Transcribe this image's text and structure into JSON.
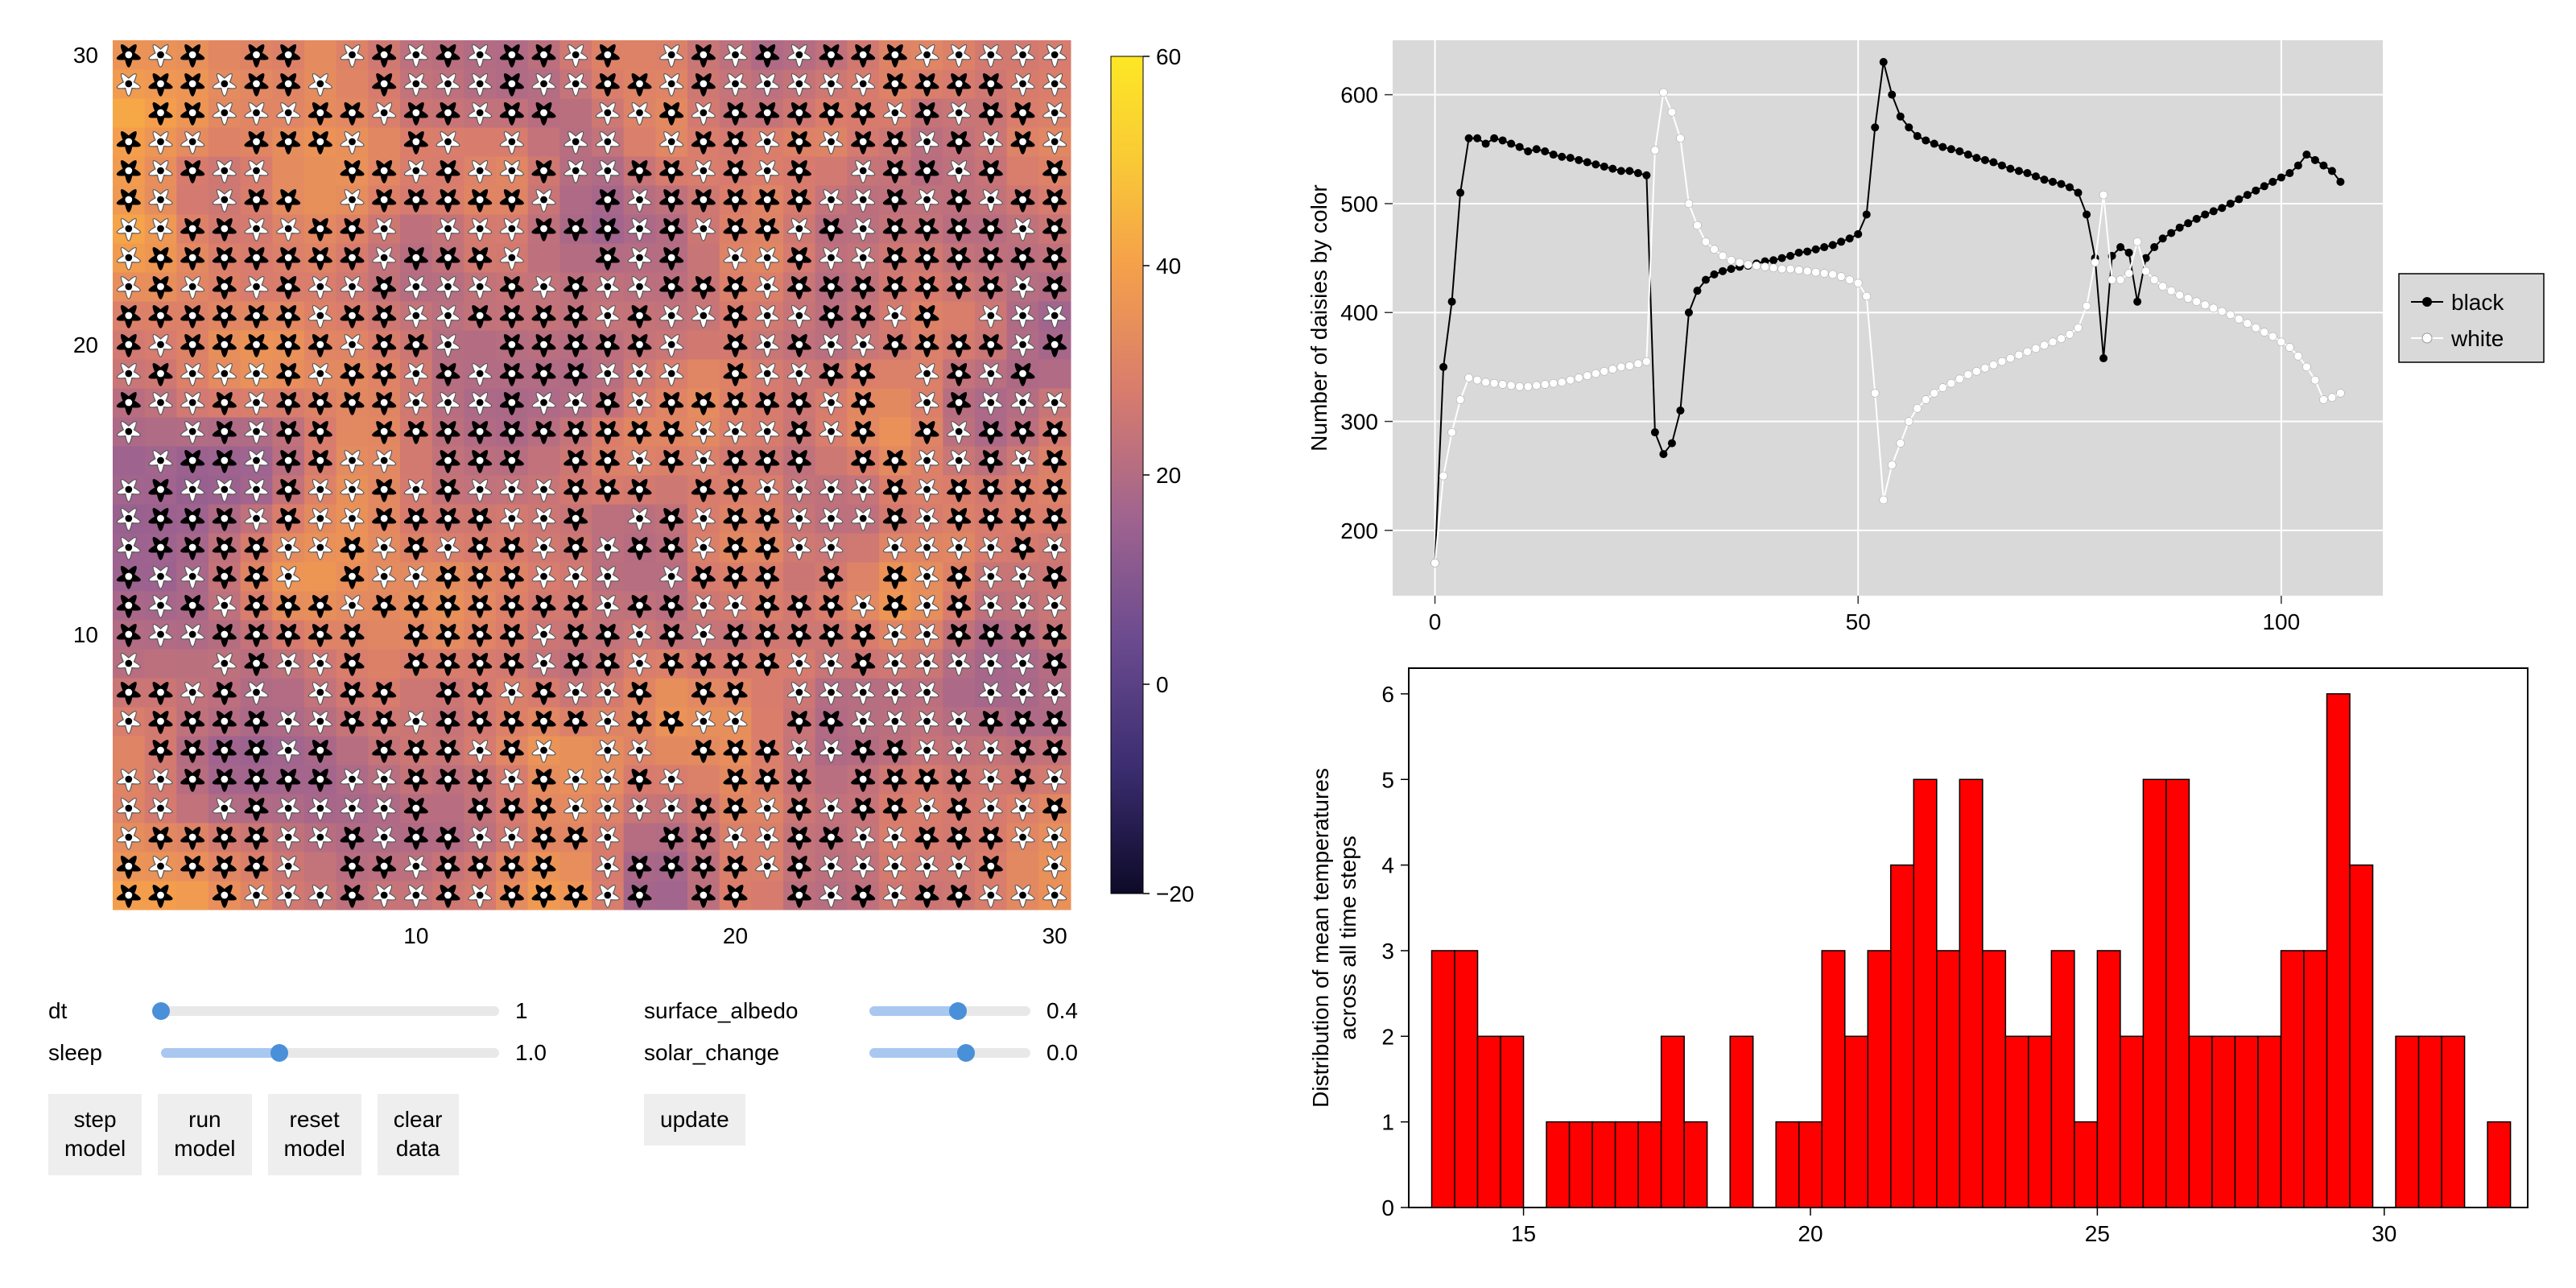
{
  "heatmap": {
    "type": "heatmap",
    "grid_size": 30,
    "x_ticks": [
      10,
      20,
      30
    ],
    "y_ticks": [
      10,
      20,
      30
    ],
    "tick_fontsize": 28,
    "colorbar": {
      "min": -20,
      "max": 60,
      "ticks": [
        -20,
        0,
        20,
        40,
        60
      ],
      "colors": [
        {
          "t": 0.0,
          "c": "#0d0a28"
        },
        {
          "t": 0.15,
          "c": "#3b2d70"
        },
        {
          "t": 0.3,
          "c": "#6a4a8f"
        },
        {
          "t": 0.45,
          "c": "#a0648f"
        },
        {
          "t": 0.6,
          "c": "#d87c6d"
        },
        {
          "t": 0.75,
          "c": "#f5a04b"
        },
        {
          "t": 0.88,
          "c": "#f9cb35"
        },
        {
          "t": 1.0,
          "c": "#fde725"
        }
      ]
    },
    "daisy_colors": {
      "black": "#000000",
      "white": "#ffffff"
    },
    "seed": 42
  },
  "controls": {
    "left": [
      {
        "name": "dt",
        "label": "dt",
        "value_text": "1",
        "fill_pct": 0,
        "thumb_pct": 0,
        "width": "wide"
      },
      {
        "name": "sleep",
        "label": "sleep",
        "value_text": "1.0",
        "fill_pct": 35,
        "thumb_pct": 35,
        "width": "wide"
      }
    ],
    "right": [
      {
        "name": "surface_albedo",
        "label": "surface_albedo",
        "value_text": "0.4",
        "fill_pct": 55,
        "thumb_pct": 55,
        "width": "narrow"
      },
      {
        "name": "solar_change",
        "label": "solar_change",
        "value_text": "0.0",
        "fill_pct": 60,
        "thumb_pct": 60,
        "width": "narrow"
      }
    ],
    "buttons_left": [
      {
        "name": "step-model",
        "label": "step\nmodel"
      },
      {
        "name": "run-model",
        "label": "run\nmodel"
      },
      {
        "name": "reset-model",
        "label": "reset\nmodel"
      },
      {
        "name": "clear-data",
        "label": "clear\ndata"
      }
    ],
    "buttons_right": [
      {
        "name": "update",
        "label": "update"
      }
    ]
  },
  "line_chart": {
    "type": "line",
    "background_color": "#d9d9d9",
    "grid_color": "#ffffff",
    "ylabel": "Number of daisies by color",
    "label_fontsize": 28,
    "xlim": [
      -5,
      112
    ],
    "ylim": [
      140,
      650
    ],
    "x_ticks": [
      0,
      50,
      100
    ],
    "y_ticks": [
      200,
      300,
      400,
      500,
      600
    ],
    "series": [
      {
        "name": "black",
        "color": "#000000",
        "marker": "circle",
        "marker_size": 5,
        "line_width": 2,
        "data": [
          [
            0,
            170
          ],
          [
            1,
            350
          ],
          [
            2,
            410
          ],
          [
            3,
            510
          ],
          [
            4,
            560
          ],
          [
            5,
            560
          ],
          [
            6,
            555
          ],
          [
            7,
            560
          ],
          [
            8,
            558
          ],
          [
            9,
            555
          ],
          [
            10,
            552
          ],
          [
            11,
            548
          ],
          [
            12,
            550
          ],
          [
            13,
            548
          ],
          [
            14,
            545
          ],
          [
            15,
            543
          ],
          [
            16,
            542
          ],
          [
            17,
            540
          ],
          [
            18,
            538
          ],
          [
            19,
            536
          ],
          [
            20,
            534
          ],
          [
            21,
            532
          ],
          [
            22,
            530
          ],
          [
            23,
            530
          ],
          [
            24,
            528
          ],
          [
            25,
            526
          ],
          [
            26,
            290
          ],
          [
            27,
            270
          ],
          [
            28,
            280
          ],
          [
            29,
            310
          ],
          [
            30,
            400
          ],
          [
            31,
            420
          ],
          [
            32,
            430
          ],
          [
            33,
            435
          ],
          [
            34,
            438
          ],
          [
            35,
            440
          ],
          [
            36,
            442
          ],
          [
            37,
            443
          ],
          [
            38,
            445
          ],
          [
            39,
            447
          ],
          [
            40,
            448
          ],
          [
            41,
            450
          ],
          [
            42,
            452
          ],
          [
            43,
            455
          ],
          [
            44,
            456
          ],
          [
            45,
            458
          ],
          [
            46,
            460
          ],
          [
            47,
            462
          ],
          [
            48,
            465
          ],
          [
            49,
            468
          ],
          [
            50,
            472
          ],
          [
            51,
            490
          ],
          [
            52,
            570
          ],
          [
            53,
            630
          ],
          [
            54,
            600
          ],
          [
            55,
            580
          ],
          [
            56,
            570
          ],
          [
            57,
            562
          ],
          [
            58,
            558
          ],
          [
            59,
            555
          ],
          [
            60,
            552
          ],
          [
            61,
            550
          ],
          [
            62,
            548
          ],
          [
            63,
            545
          ],
          [
            64,
            542
          ],
          [
            65,
            540
          ],
          [
            66,
            538
          ],
          [
            67,
            535
          ],
          [
            68,
            532
          ],
          [
            69,
            530
          ],
          [
            70,
            528
          ],
          [
            71,
            525
          ],
          [
            72,
            522
          ],
          [
            73,
            520
          ],
          [
            74,
            518
          ],
          [
            75,
            515
          ],
          [
            76,
            510
          ],
          [
            77,
            490
          ],
          [
            78,
            450
          ],
          [
            79,
            358
          ],
          [
            80,
            452
          ],
          [
            81,
            460
          ],
          [
            82,
            455
          ],
          [
            83,
            410
          ],
          [
            84,
            450
          ],
          [
            85,
            460
          ],
          [
            86,
            468
          ],
          [
            87,
            473
          ],
          [
            88,
            478
          ],
          [
            89,
            482
          ],
          [
            90,
            486
          ],
          [
            91,
            490
          ],
          [
            92,
            493
          ],
          [
            93,
            496
          ],
          [
            94,
            500
          ],
          [
            95,
            504
          ],
          [
            96,
            508
          ],
          [
            97,
            512
          ],
          [
            98,
            516
          ],
          [
            99,
            520
          ],
          [
            100,
            524
          ],
          [
            101,
            528
          ],
          [
            102,
            535
          ],
          [
            103,
            545
          ],
          [
            104,
            540
          ],
          [
            105,
            535
          ],
          [
            106,
            530
          ],
          [
            107,
            520
          ]
        ]
      },
      {
        "name": "white",
        "color": "#ffffff",
        "marker": "circle",
        "marker_size": 5,
        "line_width": 2,
        "data": [
          [
            0,
            170
          ],
          [
            1,
            250
          ],
          [
            2,
            290
          ],
          [
            3,
            320
          ],
          [
            4,
            340
          ],
          [
            5,
            338
          ],
          [
            6,
            336
          ],
          [
            7,
            335
          ],
          [
            8,
            334
          ],
          [
            9,
            333
          ],
          [
            10,
            332
          ],
          [
            11,
            332
          ],
          [
            12,
            333
          ],
          [
            13,
            334
          ],
          [
            14,
            335
          ],
          [
            15,
            336
          ],
          [
            16,
            338
          ],
          [
            17,
            340
          ],
          [
            18,
            342
          ],
          [
            19,
            344
          ],
          [
            20,
            346
          ],
          [
            21,
            348
          ],
          [
            22,
            350
          ],
          [
            23,
            351
          ],
          [
            24,
            353
          ],
          [
            25,
            355
          ],
          [
            26,
            549
          ],
          [
            27,
            602
          ],
          [
            28,
            584
          ],
          [
            29,
            560
          ],
          [
            30,
            500
          ],
          [
            31,
            480
          ],
          [
            32,
            465
          ],
          [
            33,
            458
          ],
          [
            34,
            452
          ],
          [
            35,
            448
          ],
          [
            36,
            446
          ],
          [
            37,
            444
          ],
          [
            38,
            443
          ],
          [
            39,
            442
          ],
          [
            40,
            441
          ],
          [
            41,
            440
          ],
          [
            42,
            440
          ],
          [
            43,
            439
          ],
          [
            44,
            438
          ],
          [
            45,
            437
          ],
          [
            46,
            436
          ],
          [
            47,
            435
          ],
          [
            48,
            433
          ],
          [
            49,
            430
          ],
          [
            50,
            427
          ],
          [
            51,
            415
          ],
          [
            52,
            326
          ],
          [
            53,
            228
          ],
          [
            54,
            260
          ],
          [
            55,
            280
          ],
          [
            56,
            300
          ],
          [
            57,
            312
          ],
          [
            58,
            320
          ],
          [
            59,
            326
          ],
          [
            60,
            331
          ],
          [
            61,
            335
          ],
          [
            62,
            339
          ],
          [
            63,
            343
          ],
          [
            64,
            346
          ],
          [
            65,
            349
          ],
          [
            66,
            352
          ],
          [
            67,
            355
          ],
          [
            68,
            358
          ],
          [
            69,
            361
          ],
          [
            70,
            364
          ],
          [
            71,
            367
          ],
          [
            72,
            370
          ],
          [
            73,
            373
          ],
          [
            74,
            376
          ],
          [
            75,
            380
          ],
          [
            76,
            386
          ],
          [
            77,
            406
          ],
          [
            78,
            446
          ],
          [
            79,
            508
          ],
          [
            80,
            430
          ],
          [
            81,
            430
          ],
          [
            82,
            436
          ],
          [
            83,
            465
          ],
          [
            84,
            438
          ],
          [
            85,
            430
          ],
          [
            86,
            424
          ],
          [
            87,
            420
          ],
          [
            88,
            416
          ],
          [
            89,
            413
          ],
          [
            90,
            410
          ],
          [
            91,
            407
          ],
          [
            92,
            404
          ],
          [
            93,
            401
          ],
          [
            94,
            398
          ],
          [
            95,
            394
          ],
          [
            96,
            390
          ],
          [
            97,
            386
          ],
          [
            98,
            382
          ],
          [
            99,
            378
          ],
          [
            100,
            373
          ],
          [
            101,
            368
          ],
          [
            102,
            360
          ],
          [
            103,
            350
          ],
          [
            104,
            338
          ],
          [
            105,
            320
          ],
          [
            106,
            322
          ],
          [
            107,
            326
          ]
        ]
      }
    ],
    "legend": {
      "items": [
        "black",
        "white"
      ],
      "colors": [
        "#000000",
        "#ffffff"
      ]
    }
  },
  "histogram": {
    "type": "histogram",
    "ylabel": "Distribution of mean temperatures\nacross all time steps",
    "label_fontsize": 28,
    "bar_color": "#ff0000",
    "bar_border": "#000000",
    "bar_border_width": 1.5,
    "xlim": [
      13,
      32.5
    ],
    "ylim": [
      0,
      6.3
    ],
    "x_ticks": [
      15,
      20,
      25,
      30
    ],
    "y_ticks": [
      0,
      1,
      2,
      3,
      4,
      5,
      6
    ],
    "bar_width": 0.4,
    "bars": [
      [
        13.6,
        3
      ],
      [
        14.0,
        3
      ],
      [
        14.4,
        2
      ],
      [
        14.8,
        2
      ],
      [
        15.2,
        0
      ],
      [
        15.6,
        1
      ],
      [
        16.0,
        1
      ],
      [
        16.4,
        1
      ],
      [
        16.8,
        1
      ],
      [
        17.2,
        1
      ],
      [
        17.6,
        2
      ],
      [
        18.0,
        1
      ],
      [
        18.4,
        0
      ],
      [
        18.8,
        2
      ],
      [
        19.2,
        0
      ],
      [
        19.6,
        1
      ],
      [
        20.0,
        1
      ],
      [
        20.4,
        3
      ],
      [
        20.8,
        2
      ],
      [
        21.2,
        3
      ],
      [
        21.6,
        4
      ],
      [
        22.0,
        5
      ],
      [
        22.4,
        3
      ],
      [
        22.8,
        5
      ],
      [
        23.2,
        3
      ],
      [
        23.6,
        2
      ],
      [
        24.0,
        2
      ],
      [
        24.4,
        3
      ],
      [
        24.8,
        1
      ],
      [
        25.2,
        3
      ],
      [
        25.6,
        2
      ],
      [
        26.0,
        5
      ],
      [
        26.4,
        5
      ],
      [
        26.8,
        2
      ],
      [
        27.2,
        2
      ],
      [
        27.6,
        2
      ],
      [
        28.0,
        2
      ],
      [
        28.4,
        3
      ],
      [
        28.8,
        3
      ],
      [
        29.2,
        6
      ],
      [
        29.6,
        4
      ],
      [
        30.0,
        0
      ],
      [
        30.4,
        2
      ],
      [
        30.8,
        2
      ],
      [
        31.2,
        2
      ],
      [
        31.6,
        0
      ],
      [
        32.0,
        1
      ]
    ]
  }
}
